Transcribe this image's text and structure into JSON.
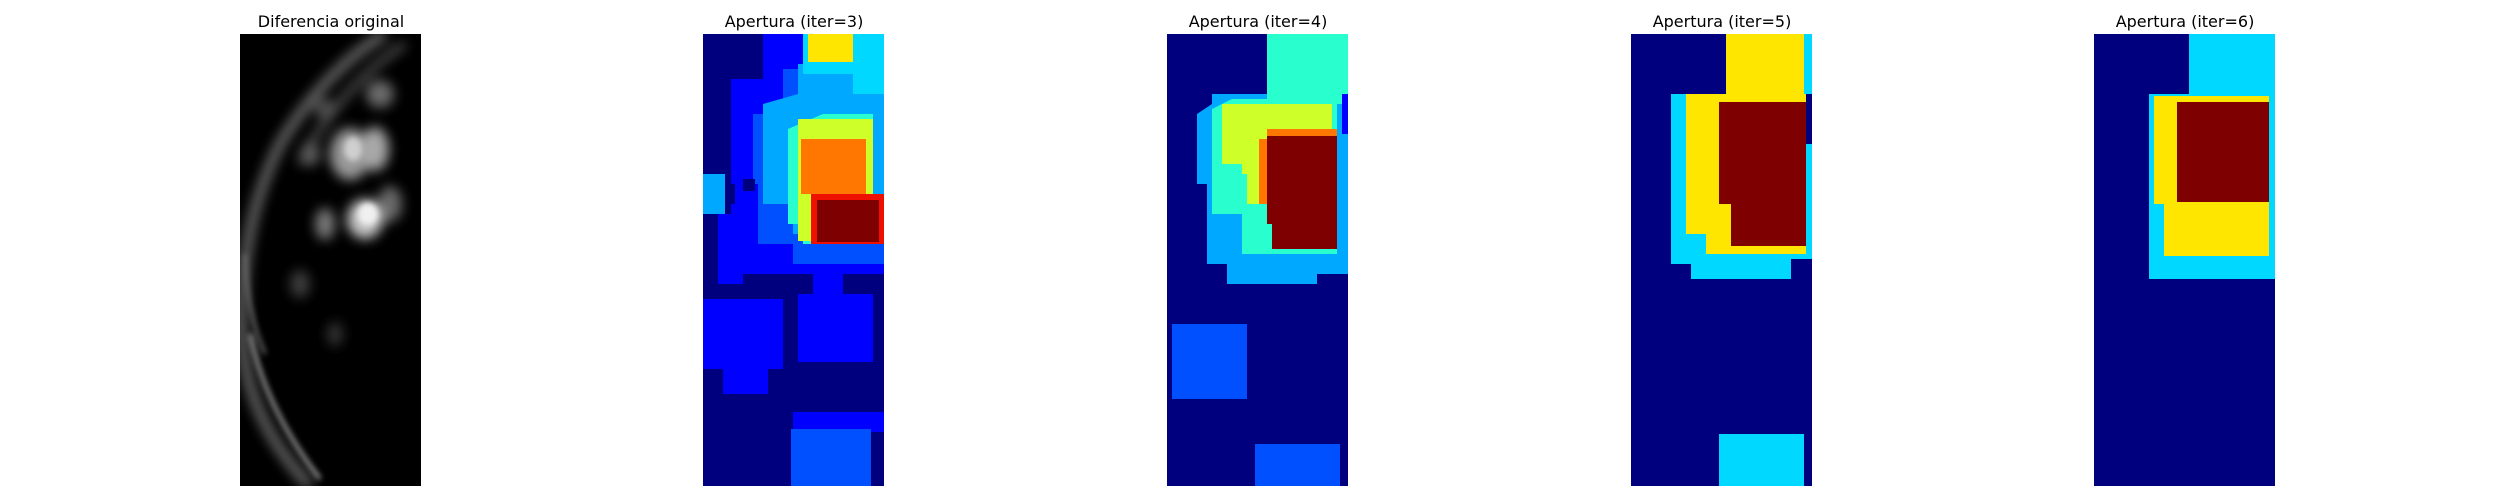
{
  "figure": {
    "panels": [
      {
        "title": "Diferencia original",
        "kind": "grayscale-image"
      },
      {
        "title": "Apertura (iter=3)",
        "kind": "jet-colormap-image"
      },
      {
        "title": "Apertura (iter=4)",
        "kind": "jet-colormap-image"
      },
      {
        "title": "Apertura (iter=5)",
        "kind": "jet-colormap-image"
      },
      {
        "title": "Apertura (iter=6)",
        "kind": "jet-colormap-image"
      }
    ],
    "colormap": "jet",
    "colors": {
      "jet_dark_blue": "#00007f",
      "jet_blue": "#0000ff",
      "jet_mid_blue": "#0050ff",
      "jet_sky_blue": "#00a8ff",
      "jet_cyan": "#00d8ff",
      "jet_aqua": "#29ffce",
      "jet_yellow_green": "#ceff29",
      "jet_yellow": "#ffe600",
      "jet_orange": "#ff7700",
      "jet_red": "#ee1100",
      "jet_dark_red": "#7f0000"
    }
  }
}
